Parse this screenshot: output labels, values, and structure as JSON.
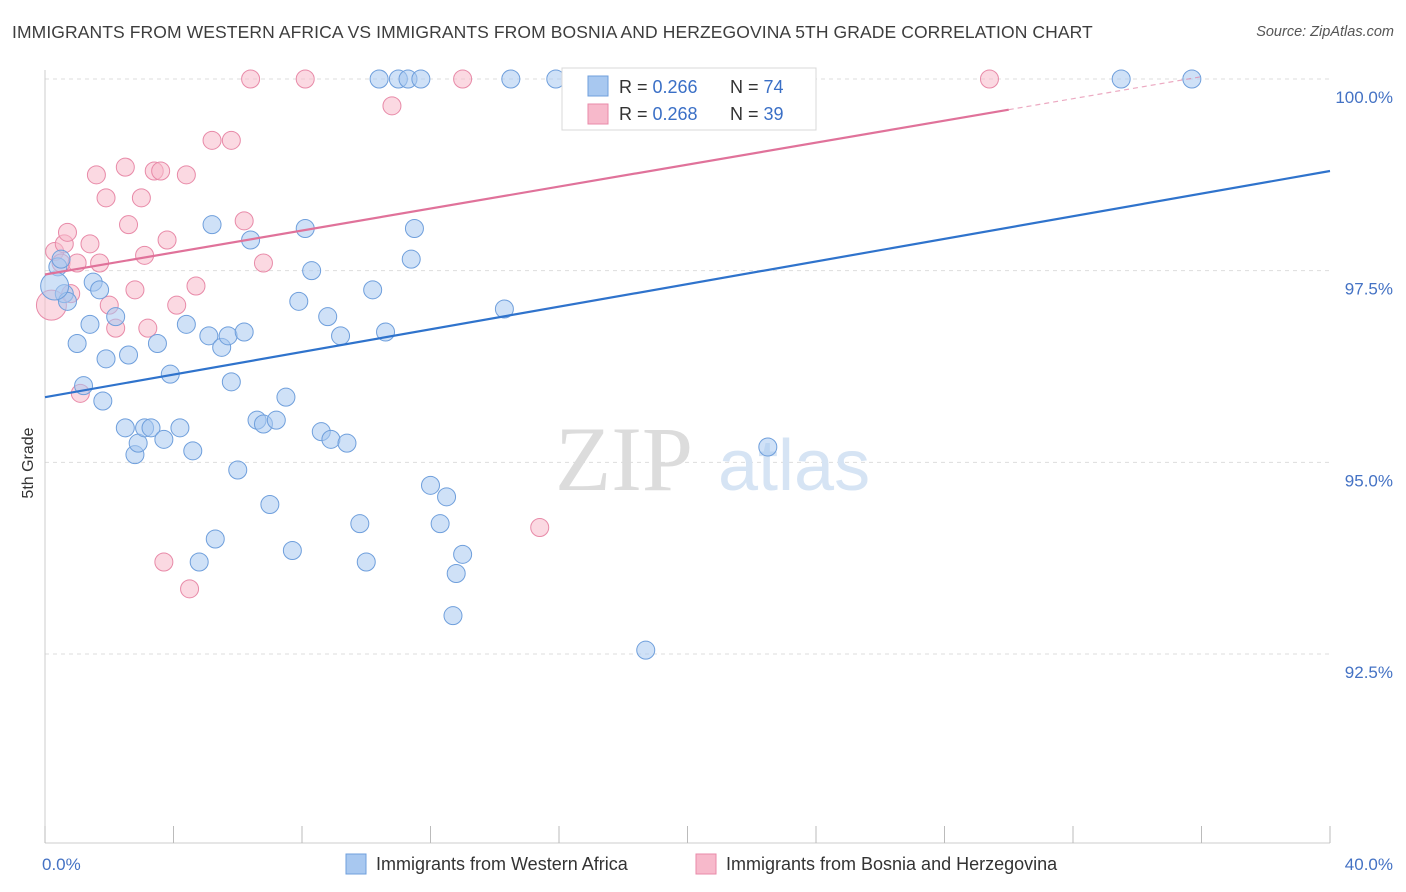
{
  "title": "IMMIGRANTS FROM WESTERN AFRICA VS IMMIGRANTS FROM BOSNIA AND HERZEGOVINA 5TH GRADE CORRELATION CHART",
  "source": "Source: ZipAtlas.com",
  "watermark": {
    "zip": "ZIP",
    "atlas": "atlas"
  },
  "colors": {
    "blue_fill": "#a8c8f0",
    "blue_stroke": "#6f9fdc",
    "blue_line": "#2f73cc",
    "pink_fill": "#f7b9cb",
    "pink_stroke": "#e88aa8",
    "pink_line": "#e0729a",
    "tick_text": "#4472c4",
    "grid": "#dddddd"
  },
  "legend": {
    "rows": [
      {
        "r_label": "R = ",
        "r_value": "0.266",
        "n_label": "N = ",
        "n_value": "74"
      },
      {
        "r_label": "R = ",
        "r_value": "0.268",
        "n_label": "N = ",
        "n_value": "39"
      }
    ]
  },
  "chart_data": {
    "type": "scatter",
    "title": "IMMIGRANTS FROM WESTERN AFRICA VS IMMIGRANTS FROM BOSNIA AND HERZEGOVINA 5TH GRADE CORRELATION CHART",
    "xlabel": "",
    "ylabel": "5th Grade",
    "xlim": [
      0,
      40
    ],
    "ylim": [
      90.0,
      100.4
    ],
    "x_tick_labels": [
      {
        "value": 0,
        "label": "0.0%"
      },
      {
        "value": 40,
        "label": "40.0%"
      }
    ],
    "y_ticks": [
      {
        "value": 100,
        "label": "100.0%"
      },
      {
        "value": 97.5,
        "label": "97.5%"
      },
      {
        "value": 95,
        "label": "95.0%"
      },
      {
        "value": 92.5,
        "label": "92.5%"
      }
    ],
    "grid": true,
    "legend_position": "top-center",
    "series": [
      {
        "name": "Immigrants from Western Africa",
        "color": "#a8c8f0",
        "r": 0.266,
        "n": 74,
        "trend": {
          "x": [
            0,
            40
          ],
          "y": [
            95.85,
            98.8
          ]
        },
        "points": [
          [
            0.4,
            97.55
          ],
          [
            0.5,
            97.65
          ],
          [
            0.6,
            97.2
          ],
          [
            0.7,
            97.1
          ],
          [
            1.0,
            96.55
          ],
          [
            1.2,
            96.0
          ],
          [
            1.4,
            96.8
          ],
          [
            1.5,
            97.35
          ],
          [
            1.7,
            97.25
          ],
          [
            1.8,
            95.8
          ],
          [
            1.9,
            96.35
          ],
          [
            2.2,
            96.9
          ],
          [
            2.5,
            95.45
          ],
          [
            2.6,
            96.4
          ],
          [
            2.8,
            95.1
          ],
          [
            2.9,
            95.25
          ],
          [
            3.1,
            95.45
          ],
          [
            3.3,
            95.45
          ],
          [
            3.5,
            96.55
          ],
          [
            3.7,
            95.3
          ],
          [
            3.9,
            96.15
          ],
          [
            4.2,
            95.45
          ],
          [
            4.4,
            96.8
          ],
          [
            4.6,
            95.15
          ],
          [
            4.8,
            93.7
          ],
          [
            5.1,
            96.65
          ],
          [
            5.2,
            98.1
          ],
          [
            5.3,
            94.0
          ],
          [
            5.5,
            96.5
          ],
          [
            5.7,
            96.65
          ],
          [
            5.8,
            96.05
          ],
          [
            6.0,
            94.9
          ],
          [
            6.2,
            96.7
          ],
          [
            6.4,
            97.9
          ],
          [
            6.6,
            95.55
          ],
          [
            6.8,
            95.5
          ],
          [
            7.0,
            94.45
          ],
          [
            7.2,
            95.55
          ],
          [
            7.5,
            95.85
          ],
          [
            7.7,
            93.85
          ],
          [
            7.9,
            97.1
          ],
          [
            8.1,
            98.05
          ],
          [
            8.3,
            97.5
          ],
          [
            8.6,
            95.4
          ],
          [
            8.8,
            96.9
          ],
          [
            8.9,
            95.3
          ],
          [
            9.2,
            96.65
          ],
          [
            9.4,
            95.25
          ],
          [
            9.8,
            94.2
          ],
          [
            10.0,
            93.7
          ],
          [
            10.2,
            97.25
          ],
          [
            10.6,
            96.7
          ],
          [
            10.4,
            100.0
          ],
          [
            11.0,
            100.0
          ],
          [
            11.3,
            100.0
          ],
          [
            11.4,
            97.65
          ],
          [
            11.5,
            98.05
          ],
          [
            11.7,
            100.0
          ],
          [
            12.0,
            94.7
          ],
          [
            12.3,
            94.2
          ],
          [
            12.5,
            94.55
          ],
          [
            12.8,
            93.55
          ],
          [
            13.0,
            93.8
          ],
          [
            12.7,
            93.0
          ],
          [
            14.3,
            97.0
          ],
          [
            14.5,
            100.0
          ],
          [
            15.9,
            100.0
          ],
          [
            16.5,
            100.0
          ],
          [
            18.7,
            92.55
          ],
          [
            19.1,
            100.0
          ],
          [
            22.5,
            95.2
          ],
          [
            33.5,
            100.0
          ],
          [
            35.7,
            100.0
          ],
          [
            0.3,
            97.3
          ]
        ]
      },
      {
        "name": "Immigrants from Bosnia and Herzegovina",
        "color": "#f7b9cb",
        "r": 0.268,
        "n": 39,
        "trend": {
          "x": [
            0,
            30
          ],
          "y": [
            97.45,
            99.6
          ]
        },
        "trend_dashed": {
          "x": [
            30,
            36
          ],
          "y": [
            99.6,
            100.03
          ]
        },
        "points": [
          [
            0.2,
            97.05
          ],
          [
            0.3,
            97.75
          ],
          [
            0.5,
            97.6
          ],
          [
            0.6,
            97.85
          ],
          [
            0.7,
            98.0
          ],
          [
            0.8,
            97.2
          ],
          [
            1.0,
            97.6
          ],
          [
            1.1,
            95.9
          ],
          [
            1.4,
            97.85
          ],
          [
            1.6,
            98.75
          ],
          [
            1.7,
            97.6
          ],
          [
            1.9,
            98.45
          ],
          [
            2.0,
            97.05
          ],
          [
            2.2,
            96.75
          ],
          [
            2.5,
            98.85
          ],
          [
            2.6,
            98.1
          ],
          [
            2.8,
            97.25
          ],
          [
            3.0,
            98.45
          ],
          [
            3.1,
            97.7
          ],
          [
            3.2,
            96.75
          ],
          [
            3.4,
            98.8
          ],
          [
            3.6,
            98.8
          ],
          [
            3.7,
            93.7
          ],
          [
            3.8,
            97.9
          ],
          [
            4.1,
            97.05
          ],
          [
            4.4,
            98.75
          ],
          [
            4.5,
            93.35
          ],
          [
            4.7,
            97.3
          ],
          [
            5.2,
            99.2
          ],
          [
            5.8,
            99.2
          ],
          [
            6.2,
            98.15
          ],
          [
            6.4,
            100.0
          ],
          [
            6.8,
            97.6
          ],
          [
            8.1,
            100.0
          ],
          [
            10.8,
            99.65
          ],
          [
            13.0,
            100.0
          ],
          [
            15.4,
            94.15
          ],
          [
            18.6,
            100.0
          ],
          [
            29.4,
            100.0
          ]
        ]
      }
    ]
  }
}
